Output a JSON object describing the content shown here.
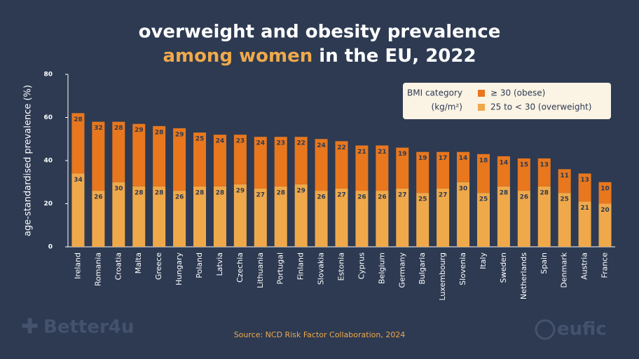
{
  "chart_data": {
    "type": "stacked_bar",
    "title_line1": "overweight and obesity prevalence",
    "title_line2_highlight": "among women",
    "title_line2_rest": "in the EU, 2022",
    "y_label": "age-standardised prevalence (%)",
    "legend_title_line1": "BMI category",
    "legend_title_line2": "(kg/m²)",
    "source": "Source: NCD Risk Factor Collaboration, 2024",
    "logos": [
      "Better4u",
      "eufic"
    ],
    "categories": [
      "Ireland",
      "Romania",
      "Croatia",
      "Malta",
      "Greece",
      "Hungary",
      "Poland",
      "Latvia",
      "Czechia",
      "Lithuania",
      "Portugal",
      "Finland",
      "Slovakia",
      "Estonia",
      "Cyprus",
      "Belgium",
      "Germany",
      "Bulgaria",
      "Luxembourg",
      "Slovenia",
      "Italy",
      "Sweden",
      "Netherlands",
      "Spain",
      "Denmark",
      "Austria",
      "France"
    ],
    "series": [
      {
        "name": "25 to < 30 (overweight)",
        "color": "#f0a94a",
        "values": [
          34,
          26,
          30,
          28,
          28,
          26,
          28,
          28,
          29,
          27,
          28,
          29,
          26,
          27,
          26,
          26,
          27,
          25,
          27,
          30,
          25,
          28,
          26,
          28,
          25,
          21,
          20
        ]
      },
      {
        "name": "≥ 30 (obese)",
        "color": "#e8771e",
        "values": [
          28,
          32,
          28,
          29,
          28,
          29,
          25,
          24,
          23,
          24,
          23,
          22,
          24,
          22,
          21,
          21,
          19,
          19,
          17,
          14,
          18,
          14,
          15,
          13,
          11,
          13,
          10
        ]
      }
    ],
    "ylim": [
      0,
      80
    ],
    "yticks": [
      0,
      20,
      40,
      60,
      80
    ]
  }
}
